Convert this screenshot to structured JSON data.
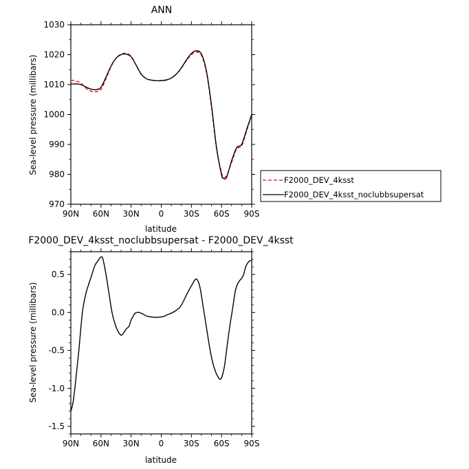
{
  "chart_data": [
    {
      "type": "line",
      "title": "ANN",
      "xlabel": "latitude",
      "ylabel": "Sea-level pressure (millibars)",
      "xlim": [
        -90,
        90
      ],
      "ylim": [
        970,
        1030
      ],
      "x_ticks": [
        -90,
        -60,
        -30,
        0,
        30,
        60,
        90
      ],
      "x_tick_labels": [
        "90N",
        "60N",
        "30N",
        "0",
        "30S",
        "60S",
        "90S"
      ],
      "y_ticks": [
        970,
        980,
        990,
        1000,
        1010,
        1020,
        1030
      ],
      "y_tick_labels": [
        "970",
        "980",
        "990",
        "1000",
        "1010",
        "1020",
        "1030"
      ],
      "grid": false,
      "legend_position": "right, outside plot",
      "series": [
        {
          "name": "F2000_DEV_4ksst",
          "color": "#ff0000",
          "dash": "dashed",
          "x": [
            -90,
            -85,
            -80,
            -75,
            -70,
            -65,
            -60,
            -55,
            -50,
            -45,
            -40,
            -35,
            -30,
            -25,
            -20,
            -15,
            -10,
            -5,
            0,
            5,
            10,
            15,
            20,
            25,
            30,
            35,
            40,
            45,
            50,
            55,
            60,
            62,
            65,
            70,
            75,
            80,
            85,
            90
          ],
          "y": [
            1011.5,
            1011.2,
            1010.5,
            1008.8,
            1007.8,
            1007.6,
            1008.4,
            1012.0,
            1016.0,
            1018.8,
            1020.2,
            1020.4,
            1019.5,
            1016.5,
            1013.5,
            1012.0,
            1011.5,
            1011.3,
            1011.4,
            1011.6,
            1012.2,
            1013.5,
            1015.5,
            1018.0,
            1020.0,
            1020.9,
            1019.8,
            1014.0,
            1002.5,
            988.5,
            980.5,
            979.2,
            979.5,
            984.0,
            988.5,
            989.5,
            994.5,
            1000.0
          ]
        },
        {
          "name": "F2000_DEV_4ksst_noclubbsupersat",
          "color": "#000000",
          "dash": "solid",
          "x": [
            -90,
            -85,
            -80,
            -75,
            -70,
            -65,
            -60,
            -55,
            -50,
            -45,
            -40,
            -35,
            -30,
            -25,
            -20,
            -15,
            -10,
            -5,
            0,
            5,
            10,
            15,
            20,
            25,
            30,
            35,
            40,
            45,
            50,
            55,
            60,
            62,
            65,
            70,
            75,
            80,
            85,
            90
          ],
          "y": [
            1010.2,
            1010.2,
            1010.0,
            1009.2,
            1008.5,
            1008.3,
            1009.1,
            1012.5,
            1016.2,
            1018.8,
            1020.0,
            1020.2,
            1019.3,
            1016.5,
            1013.5,
            1012.0,
            1011.5,
            1011.3,
            1011.3,
            1011.5,
            1012.2,
            1013.5,
            1015.6,
            1018.2,
            1020.4,
            1021.3,
            1020.2,
            1014.5,
            1003.0,
            989.0,
            979.8,
            978.7,
            979.0,
            984.5,
            988.9,
            990.0,
            995.0,
            1000.0
          ]
        }
      ]
    },
    {
      "type": "line",
      "title": "F2000_DEV_4ksst_noclubbsupersat - F2000_DEV_4ksst",
      "xlabel": "latitude",
      "ylabel": "Sea-level pressure (millibars)",
      "xlim": [
        -90,
        90
      ],
      "ylim": [
        -1.6,
        0.8
      ],
      "x_ticks": [
        -90,
        -60,
        -30,
        0,
        30,
        60,
        90
      ],
      "x_tick_labels": [
        "90N",
        "60N",
        "30N",
        "0",
        "30S",
        "60S",
        "90S"
      ],
      "y_ticks": [
        -1.5,
        -1.0,
        -0.5,
        0.0,
        0.5
      ],
      "y_tick_labels": [
        "-1.5",
        "-1.0",
        "-0.5",
        "0.0",
        "0.5"
      ],
      "grid": false,
      "series": [
        {
          "color": "#000000",
          "dash": "solid",
          "x": [
            -90,
            -88,
            -86,
            -84,
            -82,
            -80,
            -78,
            -75,
            -72,
            -69,
            -66,
            -63,
            -60,
            -58,
            -55,
            -52,
            -49,
            -46,
            -43,
            -40,
            -38,
            -35,
            -32,
            -30,
            -28,
            -26,
            -24,
            -22,
            -20,
            -17,
            -14,
            -10,
            -5,
            0,
            3,
            6,
            10,
            14,
            18,
            21,
            24,
            27,
            30,
            33,
            35,
            37,
            39,
            42,
            45,
            48,
            51,
            54,
            57,
            59,
            61,
            63,
            65,
            68,
            71,
            74,
            77,
            80,
            82,
            84,
            86,
            88,
            90
          ],
          "y": [
            -1.3,
            -1.2,
            -1.0,
            -0.75,
            -0.5,
            -0.2,
            0.05,
            0.25,
            0.38,
            0.5,
            0.62,
            0.68,
            0.73,
            0.7,
            0.5,
            0.25,
            0.0,
            -0.15,
            -0.25,
            -0.3,
            -0.28,
            -0.22,
            -0.18,
            -0.1,
            -0.05,
            -0.01,
            0.0,
            0.0,
            -0.01,
            -0.03,
            -0.05,
            -0.06,
            -0.065,
            -0.06,
            -0.05,
            -0.03,
            -0.01,
            0.02,
            0.06,
            0.12,
            0.2,
            0.28,
            0.35,
            0.42,
            0.44,
            0.4,
            0.3,
            0.05,
            -0.2,
            -0.45,
            -0.65,
            -0.78,
            -0.86,
            -0.88,
            -0.82,
            -0.7,
            -0.5,
            -0.2,
            0.05,
            0.3,
            0.4,
            0.45,
            0.5,
            0.6,
            0.65,
            0.68,
            0.68
          ]
        }
      ]
    }
  ]
}
